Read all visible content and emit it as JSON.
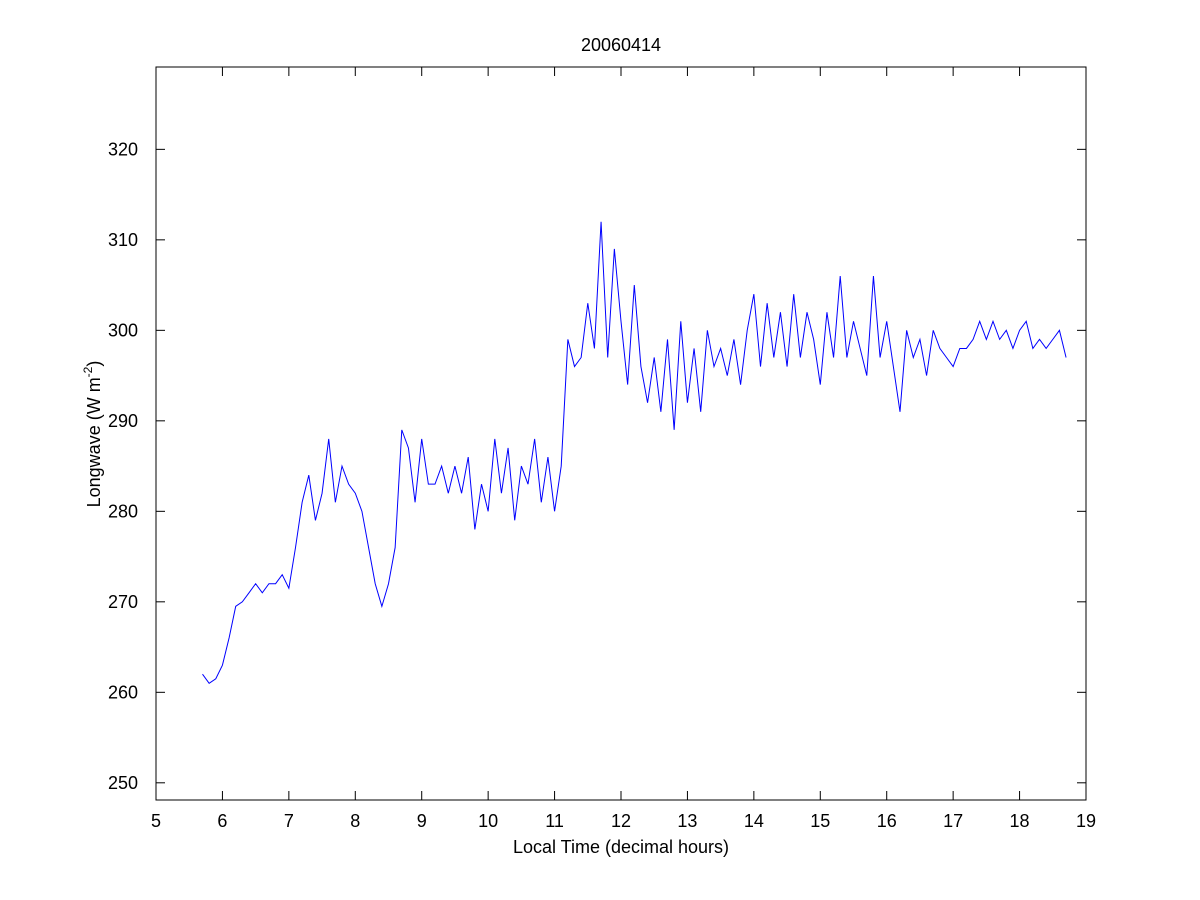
{
  "chart_data": {
    "type": "line",
    "title": "20060414",
    "xlabel": "Local Time (decimal hours)",
    "ylabel": {
      "text": "Longwave (W m",
      "superscript": "-2",
      "suffix": ")"
    },
    "color": "#0000ff",
    "xlim": [
      5,
      19
    ],
    "xticks": [
      5,
      6,
      7,
      8,
      9,
      10,
      11,
      12,
      13,
      14,
      15,
      16,
      17,
      18,
      19
    ],
    "ylim": [
      248.1,
      329.1
    ],
    "yticks": [
      250,
      260,
      270,
      280,
      290,
      300,
      310,
      320
    ],
    "x": [
      5.7,
      5.8,
      5.9,
      6.0,
      6.1,
      6.2,
      6.3,
      6.4,
      6.5,
      6.6,
      6.7,
      6.8,
      6.9,
      7.0,
      7.1,
      7.2,
      7.3,
      7.4,
      7.5,
      7.6,
      7.7,
      7.8,
      7.9,
      8.0,
      8.1,
      8.2,
      8.3,
      8.4,
      8.5,
      8.6,
      8.7,
      8.8,
      8.9,
      9.0,
      9.1,
      9.2,
      9.3,
      9.4,
      9.5,
      9.6,
      9.7,
      9.8,
      9.9,
      10.0,
      10.1,
      10.2,
      10.3,
      10.4,
      10.5,
      10.6,
      10.7,
      10.8,
      10.9,
      11.0,
      11.1,
      11.2,
      11.3,
      11.4,
      11.5,
      11.6,
      11.7,
      11.8,
      11.9,
      12.0,
      12.1,
      12.2,
      12.3,
      12.4,
      12.5,
      12.6,
      12.7,
      12.8,
      12.9,
      13.0,
      13.1,
      13.2,
      13.3,
      13.4,
      13.5,
      13.6,
      13.7,
      13.8,
      13.9,
      14.0,
      14.1,
      14.2,
      14.3,
      14.4,
      14.5,
      14.6,
      14.7,
      14.8,
      14.9,
      15.0,
      15.1,
      15.2,
      15.3,
      15.4,
      15.5,
      15.6,
      15.7,
      15.8,
      15.9,
      16.0,
      16.1,
      16.2,
      16.3,
      16.4,
      16.5,
      16.6,
      16.7,
      16.8,
      16.9,
      17.0,
      17.1,
      17.2,
      17.3,
      17.4,
      17.5,
      17.6,
      17.7,
      17.8,
      17.9,
      18.0,
      18.1,
      18.2,
      18.3,
      18.4,
      18.5,
      18.6,
      18.7
    ],
    "values": [
      262,
      261,
      261.5,
      263,
      266,
      269.5,
      270,
      271,
      272,
      271,
      272,
      272,
      273,
      271.5,
      276,
      281,
      284,
      279,
      282,
      288,
      281,
      285,
      283,
      282,
      280,
      276,
      272,
      269.5,
      272,
      276,
      289,
      287,
      281,
      288,
      283,
      283,
      285,
      282,
      285,
      282,
      286,
      278,
      283,
      280,
      288,
      282,
      287,
      279,
      285,
      283,
      288,
      281,
      286,
      280,
      285,
      299,
      296,
      297,
      303,
      298,
      312,
      297,
      309,
      301,
      294,
      305,
      296,
      292,
      297,
      291,
      299,
      289,
      301,
      292,
      298,
      291,
      300,
      296,
      298,
      295,
      299,
      294,
      300,
      304,
      296,
      303,
      297,
      302,
      296,
      304,
      297,
      302,
      299,
      294,
      302,
      297,
      306,
      297,
      301,
      298,
      295,
      306,
      297,
      301,
      296,
      291,
      300,
      297,
      299,
      295,
      300,
      298,
      297,
      296,
      298,
      298,
      299,
      301,
      299,
      301,
      299,
      300,
      298,
      300,
      301,
      298,
      299,
      298,
      299,
      300,
      297
    ]
  }
}
